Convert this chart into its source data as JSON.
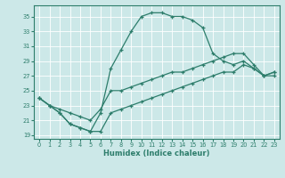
{
  "xlabel": "Humidex (Indice chaleur)",
  "bg_color": "#cce8e8",
  "line_color": "#2d7d6b",
  "grid_color": "#b8d8d8",
  "xlim": [
    -0.5,
    23.5
  ],
  "ylim": [
    18.5,
    36.5
  ],
  "xticks": [
    0,
    1,
    2,
    3,
    4,
    5,
    6,
    7,
    8,
    9,
    10,
    11,
    12,
    13,
    14,
    15,
    16,
    17,
    18,
    19,
    20,
    21,
    22,
    23
  ],
  "yticks": [
    19,
    21,
    23,
    25,
    27,
    29,
    31,
    33,
    35
  ],
  "line1_x": [
    0,
    1,
    2,
    3,
    4,
    5,
    6,
    7,
    8,
    9,
    10,
    11,
    12,
    13,
    14,
    15,
    16,
    17,
    18,
    19,
    20,
    21,
    22,
    23
  ],
  "line1_y": [
    24.0,
    23.0,
    22.0,
    20.5,
    20.0,
    19.5,
    22.0,
    28.0,
    30.5,
    33.0,
    35.0,
    35.5,
    35.5,
    35.0,
    35.0,
    34.5,
    33.5,
    30.0,
    29.0,
    28.5,
    29.0,
    28.0,
    27.0,
    27.0
  ],
  "line2_x": [
    0,
    1,
    2,
    3,
    4,
    5,
    6,
    7,
    8,
    9,
    10,
    11,
    12,
    13,
    14,
    15,
    16,
    17,
    18,
    19,
    20,
    21,
    22,
    23
  ],
  "line2_y": [
    24.0,
    23.0,
    22.5,
    22.0,
    21.5,
    21.0,
    22.5,
    25.0,
    25.0,
    25.5,
    26.0,
    26.5,
    27.0,
    27.5,
    27.5,
    28.0,
    28.5,
    29.0,
    29.5,
    30.0,
    30.0,
    28.5,
    27.0,
    27.5
  ],
  "line3_x": [
    0,
    1,
    2,
    3,
    4,
    5,
    6,
    7,
    8,
    9,
    10,
    11,
    12,
    13,
    14,
    15,
    16,
    17,
    18,
    19,
    20,
    21,
    22,
    23
  ],
  "line3_y": [
    24.0,
    23.0,
    22.0,
    20.5,
    20.0,
    19.5,
    19.5,
    22.0,
    22.5,
    23.0,
    23.5,
    24.0,
    24.5,
    25.0,
    25.5,
    26.0,
    26.5,
    27.0,
    27.5,
    27.5,
    28.5,
    28.0,
    27.0,
    27.5
  ]
}
